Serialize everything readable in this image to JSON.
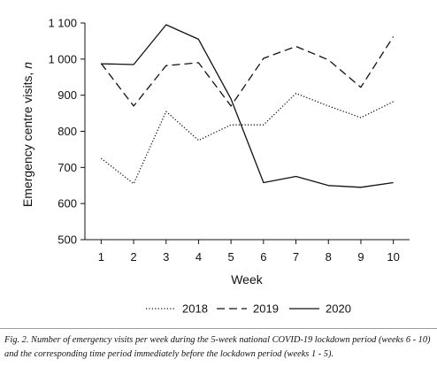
{
  "chart_data": {
    "type": "line",
    "title": "",
    "xlabel": "Week",
    "ylabel": "Emergency centre visits,",
    "ylabel_italic_suffix": "n",
    "x": [
      1,
      2,
      3,
      4,
      5,
      6,
      7,
      8,
      9,
      10
    ],
    "x_tick_labels": [
      "1",
      "2",
      "3",
      "4",
      "5",
      "6",
      "7",
      "8",
      "9",
      "10"
    ],
    "y_ticks": [
      500,
      600,
      700,
      800,
      900,
      1000,
      1100
    ],
    "y_tick_labels": [
      "500",
      "600",
      "700",
      "800",
      "900",
      "1 000",
      "1 100"
    ],
    "xlim": [
      0.5,
      10.5
    ],
    "ylim": [
      500,
      1100
    ],
    "grid": false,
    "legend_placement": "bottom",
    "series": [
      {
        "name": "2018",
        "style": "dotted",
        "color": "#111111",
        "values": [
          725,
          655,
          855,
          775,
          818,
          818,
          905,
          870,
          838,
          882
        ]
      },
      {
        "name": "2019",
        "style": "dashed",
        "color": "#111111",
        "values": [
          988,
          870,
          982,
          990,
          870,
          1002,
          1035,
          998,
          922,
          1062
        ]
      },
      {
        "name": "2020",
        "style": "solid",
        "color": "#111111",
        "values": [
          987,
          985,
          1095,
          1055,
          890,
          658,
          675,
          650,
          645,
          658
        ]
      }
    ]
  },
  "caption": "Fig. 2. Number of emergency visits per week during the 5-week national COVID-19 lockdown period (weeks 6 - 10) and the corresponding time period immediately before the lockdown period (weeks 1 - 5)."
}
